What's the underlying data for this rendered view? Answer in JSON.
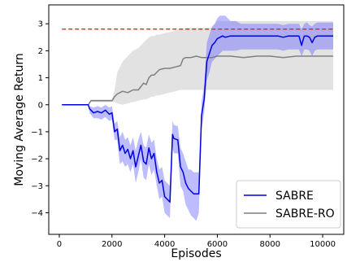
{
  "chart_data": {
    "type": "line",
    "xlabel": "Episodes",
    "ylabel": "Moving Average Return",
    "xlim": [
      -400,
      10800
    ],
    "ylim": [
      -4.8,
      3.7
    ],
    "xticks": [
      0,
      2000,
      4000,
      6000,
      8000,
      10000
    ],
    "yticks": [
      -4,
      -3,
      -2,
      -1,
      0,
      1,
      2,
      3
    ],
    "grid": false,
    "legend_position": "lower-right",
    "reference_line": {
      "y": 2.8,
      "color": "#d62728",
      "style": "dashed",
      "x_range": [
        100,
        10400
      ]
    },
    "series": [
      {
        "name": "SABRE",
        "color": "#0000dd",
        "band_color": "#6a6aff",
        "x": [
          100,
          1100,
          1150,
          1300,
          1450,
          1600,
          1750,
          1900,
          2000,
          2100,
          2200,
          2300,
          2400,
          2500,
          2600,
          2700,
          2800,
          2900,
          3000,
          3100,
          3200,
          3300,
          3400,
          3500,
          3600,
          3700,
          3800,
          3900,
          4000,
          4100,
          4200,
          4300,
          4350,
          4500,
          4600,
          4700,
          4800,
          4900,
          5000,
          5100,
          5200,
          5300,
          5400,
          5500,
          5600,
          5700,
          5800,
          5900,
          6000,
          6100,
          6200,
          6300,
          6500,
          6700,
          6900,
          7100,
          7300,
          7500,
          7700,
          7900,
          8100,
          8300,
          8500,
          8700,
          8900,
          9100,
          9200,
          9300,
          9400,
          9500,
          9600,
          9700,
          9800,
          9900,
          10000,
          10200,
          10400
        ],
        "y": [
          0.0,
          0.0,
          -0.15,
          -0.3,
          -0.25,
          -0.3,
          -0.2,
          -0.35,
          -0.3,
          -1.0,
          -0.9,
          -1.7,
          -1.5,
          -1.8,
          -1.65,
          -2.0,
          -1.7,
          -2.3,
          -1.9,
          -1.5,
          -2.1,
          -2.2,
          -1.6,
          -2.0,
          -1.8,
          -2.5,
          -2.9,
          -2.8,
          -3.4,
          -3.5,
          -3.6,
          -1.1,
          -1.25,
          -1.3,
          -2.3,
          -2.5,
          -2.9,
          -3.1,
          -3.2,
          -3.3,
          -3.3,
          -3.3,
          -0.4,
          0.2,
          1.6,
          1.9,
          2.2,
          2.3,
          2.45,
          2.5,
          2.55,
          2.5,
          2.55,
          2.55,
          2.55,
          2.55,
          2.55,
          2.55,
          2.55,
          2.55,
          2.55,
          2.55,
          2.5,
          2.55,
          2.55,
          2.55,
          2.2,
          2.55,
          2.55,
          2.5,
          2.3,
          2.5,
          2.55,
          2.55,
          2.55,
          2.55,
          2.55
        ],
        "y_upper": [
          0.0,
          0.0,
          -0.05,
          -0.1,
          -0.05,
          -0.1,
          0.0,
          -0.1,
          -0.05,
          -0.7,
          -0.6,
          -1.2,
          -1.0,
          -1.3,
          -1.2,
          -1.5,
          -1.2,
          -1.7,
          -1.3,
          -1.0,
          -1.5,
          -1.6,
          -1.1,
          -1.4,
          -1.3,
          -2.0,
          -2.4,
          -2.3,
          -2.8,
          -2.9,
          -3.0,
          -0.6,
          -0.75,
          -0.8,
          -1.6,
          -1.8,
          -2.1,
          -2.4,
          -2.4,
          -2.5,
          -2.5,
          -2.5,
          0.1,
          0.7,
          2.3,
          2.6,
          2.9,
          3.0,
          3.2,
          3.3,
          3.3,
          3.3,
          3.1,
          3.1,
          3.0,
          3.0,
          3.0,
          3.0,
          3.0,
          3.0,
          3.0,
          3.0,
          2.95,
          3.0,
          3.0,
          3.0,
          2.8,
          3.0,
          3.05,
          2.95,
          2.9,
          3.0,
          3.05,
          3.05,
          3.05,
          3.05,
          3.05
        ],
        "y_lower": [
          0.0,
          0.0,
          -0.3,
          -0.5,
          -0.5,
          -0.55,
          -0.45,
          -0.6,
          -0.55,
          -1.3,
          -1.3,
          -2.2,
          -2.1,
          -2.3,
          -2.2,
          -2.5,
          -2.2,
          -2.9,
          -2.5,
          -2.0,
          -2.7,
          -2.8,
          -2.2,
          -2.6,
          -2.4,
          -3.0,
          -3.5,
          -3.4,
          -4.0,
          -4.1,
          -4.2,
          -1.6,
          -1.8,
          -1.8,
          -3.0,
          -3.2,
          -3.7,
          -3.9,
          -4.1,
          -4.2,
          -4.3,
          -4.0,
          -0.9,
          -0.3,
          0.9,
          1.2,
          1.6,
          1.7,
          1.8,
          1.9,
          2.0,
          2.0,
          2.0,
          2.0,
          2.05,
          2.05,
          2.05,
          2.05,
          2.05,
          2.05,
          2.05,
          2.05,
          2.0,
          2.05,
          2.05,
          2.05,
          1.8,
          2.05,
          2.05,
          2.0,
          1.8,
          2.0,
          2.05,
          2.05,
          2.05,
          2.05,
          2.05
        ]
      },
      {
        "name": "SABRE-RO",
        "color": "#7f7f7f",
        "band_color": "#cfcfcf",
        "x": [
          100,
          1100,
          1200,
          1400,
          1600,
          1800,
          2000,
          2100,
          2200,
          2400,
          2600,
          2800,
          3000,
          3200,
          3300,
          3400,
          3500,
          3600,
          3700,
          3800,
          4000,
          4200,
          4400,
          4600,
          4700,
          4800,
          5000,
          5200,
          5400,
          5600,
          5800,
          6000,
          6500,
          7000,
          7500,
          8000,
          8500,
          9000,
          9500,
          10000,
          10400
        ],
        "y": [
          0.0,
          0.0,
          0.15,
          0.15,
          0.15,
          0.15,
          0.15,
          0.3,
          0.4,
          0.5,
          0.45,
          0.55,
          0.55,
          0.8,
          0.75,
          1.0,
          1.1,
          1.1,
          1.2,
          1.3,
          1.35,
          1.35,
          1.4,
          1.45,
          1.7,
          1.75,
          1.75,
          1.8,
          1.75,
          1.75,
          1.75,
          1.8,
          1.8,
          1.75,
          1.8,
          1.8,
          1.75,
          1.8,
          1.8,
          1.8,
          1.8
        ],
        "y_upper": [
          0.0,
          0.0,
          0.2,
          0.2,
          0.2,
          0.2,
          0.2,
          0.55,
          1.2,
          1.6,
          1.8,
          2.0,
          2.1,
          2.3,
          2.4,
          2.5,
          2.55,
          2.55,
          2.6,
          2.6,
          2.65,
          2.7,
          2.75,
          2.8,
          2.8,
          2.85,
          2.85,
          2.85,
          2.85,
          2.85,
          2.85,
          3.1,
          3.1,
          3.1,
          3.1,
          3.1,
          3.1,
          3.1,
          3.1,
          3.1,
          3.1
        ],
        "y_lower": [
          0.0,
          0.0,
          0.1,
          0.1,
          0.1,
          0.1,
          0.1,
          0.1,
          0.05,
          0.0,
          0.05,
          0.1,
          0.15,
          0.2,
          0.2,
          0.25,
          0.3,
          0.3,
          0.35,
          0.35,
          0.4,
          0.45,
          0.5,
          0.55,
          0.55,
          0.55,
          0.55,
          0.55,
          0.55,
          0.55,
          0.55,
          0.55,
          0.55,
          0.55,
          0.55,
          0.55,
          0.55,
          0.55,
          0.55,
          0.55,
          0.55
        ]
      }
    ]
  }
}
